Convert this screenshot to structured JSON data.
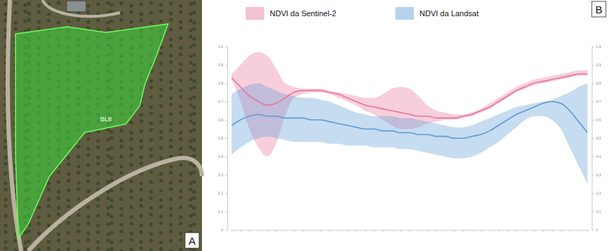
{
  "figure": {
    "panel_a_label": "A",
    "panel_b_label": "B",
    "polygon_label": "BL8"
  },
  "chart_data": {
    "type": "line",
    "categories": [
      null,
      null,
      null,
      null,
      null,
      null,
      null,
      null,
      null,
      null,
      null,
      null,
      null,
      null,
      null,
      null,
      null,
      null,
      null,
      null,
      null,
      null,
      null,
      null,
      null,
      null,
      null,
      null,
      null,
      null,
      null,
      null,
      null,
      null,
      null,
      null,
      null,
      null,
      null,
      null,
      null
    ],
    "series": [
      {
        "name": "NDVI da Sentinel-2",
        "color": "#e8739a",
        "values": [
          0.83,
          0.78,
          0.73,
          0.7,
          0.68,
          0.69,
          0.72,
          0.75,
          0.76,
          0.76,
          0.76,
          0.75,
          0.74,
          0.72,
          0.7,
          0.68,
          0.67,
          0.66,
          0.65,
          0.64,
          0.63,
          0.62,
          0.62,
          0.61,
          0.61,
          0.61,
          0.62,
          0.63,
          0.65,
          0.67,
          0.7,
          0.73,
          0.76,
          0.78,
          0.8,
          0.81,
          0.82,
          0.83,
          0.84,
          0.85,
          0.85
        ],
        "lower": [
          0.82,
          0.7,
          0.55,
          0.45,
          0.4,
          0.47,
          0.62,
          0.72,
          0.74,
          0.75,
          0.75,
          0.74,
          0.72,
          0.7,
          0.68,
          0.65,
          0.63,
          0.6,
          0.57,
          0.55,
          0.55,
          0.56,
          0.58,
          0.59,
          0.6,
          0.6,
          0.61,
          0.62,
          0.64,
          0.66,
          0.69,
          0.72,
          0.75,
          0.77,
          0.79,
          0.8,
          0.81,
          0.82,
          0.83,
          0.84,
          0.84
        ],
        "upper": [
          0.85,
          0.9,
          0.95,
          0.97,
          0.95,
          0.88,
          0.8,
          0.78,
          0.77,
          0.77,
          0.77,
          0.76,
          0.75,
          0.74,
          0.73,
          0.72,
          0.72,
          0.74,
          0.77,
          0.78,
          0.77,
          0.73,
          0.68,
          0.65,
          0.64,
          0.63,
          0.63,
          0.64,
          0.66,
          0.69,
          0.72,
          0.75,
          0.78,
          0.8,
          0.82,
          0.83,
          0.84,
          0.85,
          0.86,
          0.87,
          0.87
        ]
      },
      {
        "name": "NDVI da Landsat",
        "color": "#5b9bd5",
        "values": [
          0.57,
          0.6,
          0.62,
          0.63,
          0.62,
          0.62,
          0.61,
          0.61,
          0.61,
          0.6,
          0.6,
          0.59,
          0.58,
          0.57,
          0.56,
          0.55,
          0.55,
          0.54,
          0.54,
          0.53,
          0.53,
          0.52,
          0.52,
          0.51,
          0.51,
          0.5,
          0.5,
          0.51,
          0.52,
          0.54,
          0.57,
          0.6,
          0.63,
          0.65,
          0.67,
          0.69,
          0.7,
          0.69,
          0.65,
          0.59,
          0.53
        ],
        "lower": [
          0.41,
          0.45,
          0.48,
          0.5,
          0.51,
          0.5,
          0.49,
          0.48,
          0.48,
          0.48,
          0.48,
          0.47,
          0.47,
          0.46,
          0.46,
          0.46,
          0.45,
          0.45,
          0.45,
          0.44,
          0.44,
          0.43,
          0.42,
          0.41,
          0.4,
          0.39,
          0.39,
          0.4,
          0.42,
          0.45,
          0.48,
          0.52,
          0.56,
          0.6,
          0.62,
          0.62,
          0.6,
          0.55,
          0.45,
          0.35,
          0.25
        ],
        "upper": [
          0.74,
          0.77,
          0.79,
          0.8,
          0.78,
          0.76,
          0.74,
          0.73,
          0.72,
          0.72,
          0.71,
          0.7,
          0.68,
          0.66,
          0.64,
          0.63,
          0.62,
          0.62,
          0.62,
          0.61,
          0.61,
          0.6,
          0.59,
          0.58,
          0.57,
          0.56,
          0.56,
          0.57,
          0.59,
          0.61,
          0.63,
          0.65,
          0.67,
          0.68,
          0.69,
          0.7,
          0.71,
          0.73,
          0.75,
          0.78,
          0.8
        ]
      }
    ],
    "ylim": [
      0,
      1
    ],
    "yticks": [
      0,
      0.1,
      0.2,
      0.3,
      0.4,
      0.5,
      0.6,
      0.7,
      0.8,
      0.9,
      {
        "value": 1,
        "label": "1.0"
      }
    ],
    "grid": false,
    "legend": "top",
    "tick_labels": "y"
  }
}
